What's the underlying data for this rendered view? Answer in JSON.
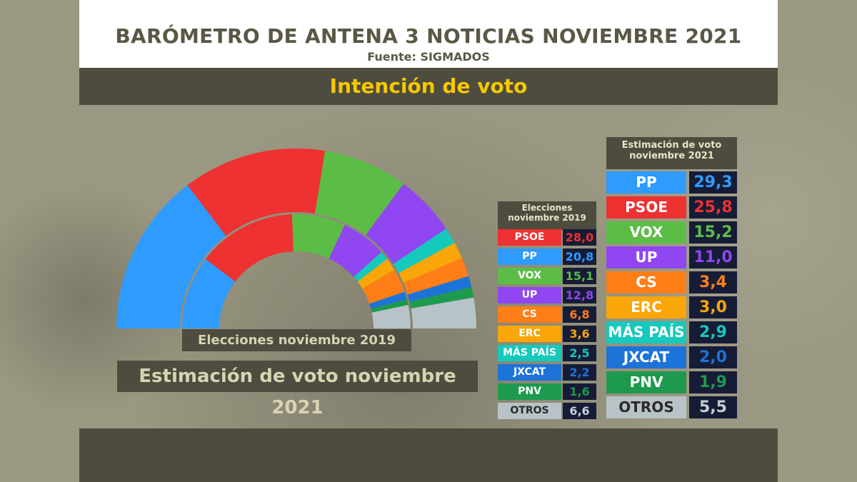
{
  "header": {
    "title": "BARÓMETRO DE ANTENA 3 NOTICIAS NOVIEMBRE 2021",
    "source": "Fuente: SIGMADOS"
  },
  "subtitle": "Intención de voto",
  "labels": {
    "elections_2019": "Elecciones noviembre 2019",
    "estimate_2021": "Estimación de voto noviembre 2021"
  },
  "tables": {
    "header_2019": "Elecciones noviembre 2019",
    "header_2021": "Estimación de voto noviembre 2021"
  },
  "chart_data": {
    "type": "pie",
    "title": "Intención de voto",
    "series": [
      {
        "name": "Elecciones noviembre 2019",
        "rows": [
          {
            "party": "PSOE",
            "value": 28.0,
            "display": "28,0",
            "color": "#ee3131"
          },
          {
            "party": "PP",
            "value": 20.8,
            "display": "20,8",
            "color": "#2f9bff"
          },
          {
            "party": "VOX",
            "value": 15.1,
            "display": "15,1",
            "color": "#5cbd46"
          },
          {
            "party": "UP",
            "value": 12.8,
            "display": "12,8",
            "color": "#9046f0"
          },
          {
            "party": "CS",
            "value": 6.8,
            "display": "6,8",
            "color": "#ff7e18"
          },
          {
            "party": "ERC",
            "value": 3.6,
            "display": "3,6",
            "color": "#f9a608"
          },
          {
            "party": "MÁS PAÍS",
            "value": 2.5,
            "display": "2,5",
            "color": "#16c9bd"
          },
          {
            "party": "JXCAT",
            "value": 2.2,
            "display": "2,2",
            "color": "#1d73d8"
          },
          {
            "party": "PNV",
            "value": 1.6,
            "display": "1,6",
            "color": "#1e9a4e"
          },
          {
            "party": "OTROS",
            "value": 6.6,
            "display": "6,6",
            "color": "#b8c3c8"
          }
        ]
      },
      {
        "name": "Estimación de voto noviembre 2021",
        "rows": [
          {
            "party": "PP",
            "value": 29.3,
            "display": "29,3",
            "color": "#2f9bff"
          },
          {
            "party": "PSOE",
            "value": 25.8,
            "display": "25,8",
            "color": "#ee3131"
          },
          {
            "party": "VOX",
            "value": 15.2,
            "display": "15,2",
            "color": "#5cbd46"
          },
          {
            "party": "UP",
            "value": 11.0,
            "display": "11,0",
            "color": "#9046f0"
          },
          {
            "party": "CS",
            "value": 3.4,
            "display": "3,4",
            "color": "#ff7e18"
          },
          {
            "party": "ERC",
            "value": 3.0,
            "display": "3,0",
            "color": "#f9a608"
          },
          {
            "party": "MÁS PAÍS",
            "value": 2.9,
            "display": "2,9",
            "color": "#16c9bd"
          },
          {
            "party": "JXCAT",
            "value": 2.0,
            "display": "2,0",
            "color": "#1d73d8"
          },
          {
            "party": "PNV",
            "value": 1.9,
            "display": "1,9",
            "color": "#1e9a4e"
          },
          {
            "party": "OTROS",
            "value": 5.5,
            "display": "5,5",
            "color": "#b8c3c8"
          }
        ]
      }
    ],
    "order_in_arc": [
      "PP",
      "PSOE",
      "VOX",
      "UP",
      "MÁS PAÍS",
      "ERC",
      "CS",
      "JXCAT",
      "PNV",
      "OTROS"
    ]
  }
}
